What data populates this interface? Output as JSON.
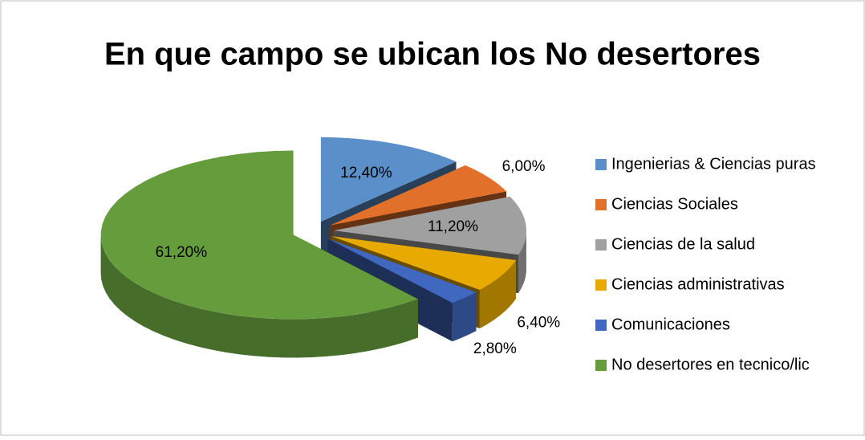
{
  "chart_data": {
    "type": "pie",
    "title": "En que campo se ubican los No desertores",
    "categories": [
      "Ingenierias & Ciencias puras",
      "Ciencias Sociales",
      "Ciencias de la salud",
      "Ciencias administrativas",
      "Comunicaciones",
      "No desertores en tecnico/lic"
    ],
    "values": [
      12.4,
      6.0,
      11.2,
      6.4,
      2.8,
      61.2
    ],
    "value_labels": [
      "12,40%",
      "6,00%",
      "11,20%",
      "6,40%",
      "2,80%",
      "61,20%"
    ],
    "colors": [
      "#5b8fc9",
      "#e0702a",
      "#a0a0a0",
      "#e8aa00",
      "#4068c0",
      "#659c3c"
    ],
    "legend": "right"
  }
}
